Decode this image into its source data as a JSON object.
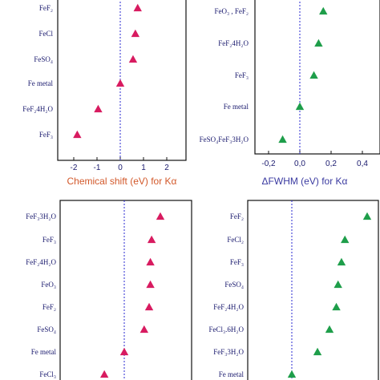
{
  "chart_data": [
    {
      "type": "scatter",
      "panel": "top-left",
      "xlabel": "Chemical shift (eV) for Kα",
      "xlim": [
        -2.4,
        2.9
      ],
      "xticks": [
        "-2",
        "-1",
        "0",
        "1",
        "2"
      ],
      "xtick_values": [
        -2,
        -1,
        0,
        1,
        2
      ],
      "reference_line_x": 0,
      "marker": "triangle",
      "color": "#d81b60",
      "categories": [
        "FeF₂",
        "FeCl",
        "FeSO₄",
        "Fe metal",
        "FeF₂4H₂O",
        "FeF₃"
      ],
      "values": [
        0.75,
        0.65,
        0.55,
        0.0,
        -0.95,
        -1.85
      ]
    },
    {
      "type": "scatter",
      "panel": "top-right",
      "xlabel": "ΔFWHM (eV) for Kα",
      "xlim": [
        -0.25,
        0.48
      ],
      "xticks": [
        "-0,2",
        "0,0",
        "0,2",
        "0,4"
      ],
      "xtick_values": [
        -0.2,
        0.0,
        0.2,
        0.4
      ],
      "reference_line_x": 0,
      "marker": "triangle",
      "color": "#1e9e4a",
      "categories": [
        "FeO₃ , FeF₂",
        "FeF₂4H₂O",
        "FeF₃",
        "Fe metal",
        "FeSO₄FeF₃3H₂O"
      ],
      "values": [
        0.15,
        0.12,
        0.09,
        0.0,
        -0.11
      ]
    },
    {
      "type": "scatter",
      "panel": "bottom-left",
      "reference_line_x": 0,
      "marker": "triangle",
      "color": "#d81b60",
      "categories": [
        "FeF₃3H₂O",
        "FeF₃",
        "FeF₂4H₂O",
        "FeO₃",
        "FeF₂",
        "FeSO₄",
        "Fe metal",
        "FeCl₃"
      ],
      "values": [
        1.45,
        1.1,
        1.05,
        1.05,
        1.0,
        0.8,
        0.0,
        -0.8
      ]
    },
    {
      "type": "scatter",
      "panel": "bottom-right",
      "reference_line_x": 0,
      "marker": "triangle",
      "color": "#1e9e4a",
      "categories": [
        "FeF₂",
        "FeCl₂",
        "FeF₃",
        "FeSO₄",
        "FeF₂4H₂O",
        "FeCl₃.6H₂O",
        "FeF₃3H₂O",
        "Fe metal"
      ],
      "values": [
        0.44,
        0.31,
        0.29,
        0.27,
        0.26,
        0.22,
        0.15,
        0.0
      ]
    }
  ]
}
